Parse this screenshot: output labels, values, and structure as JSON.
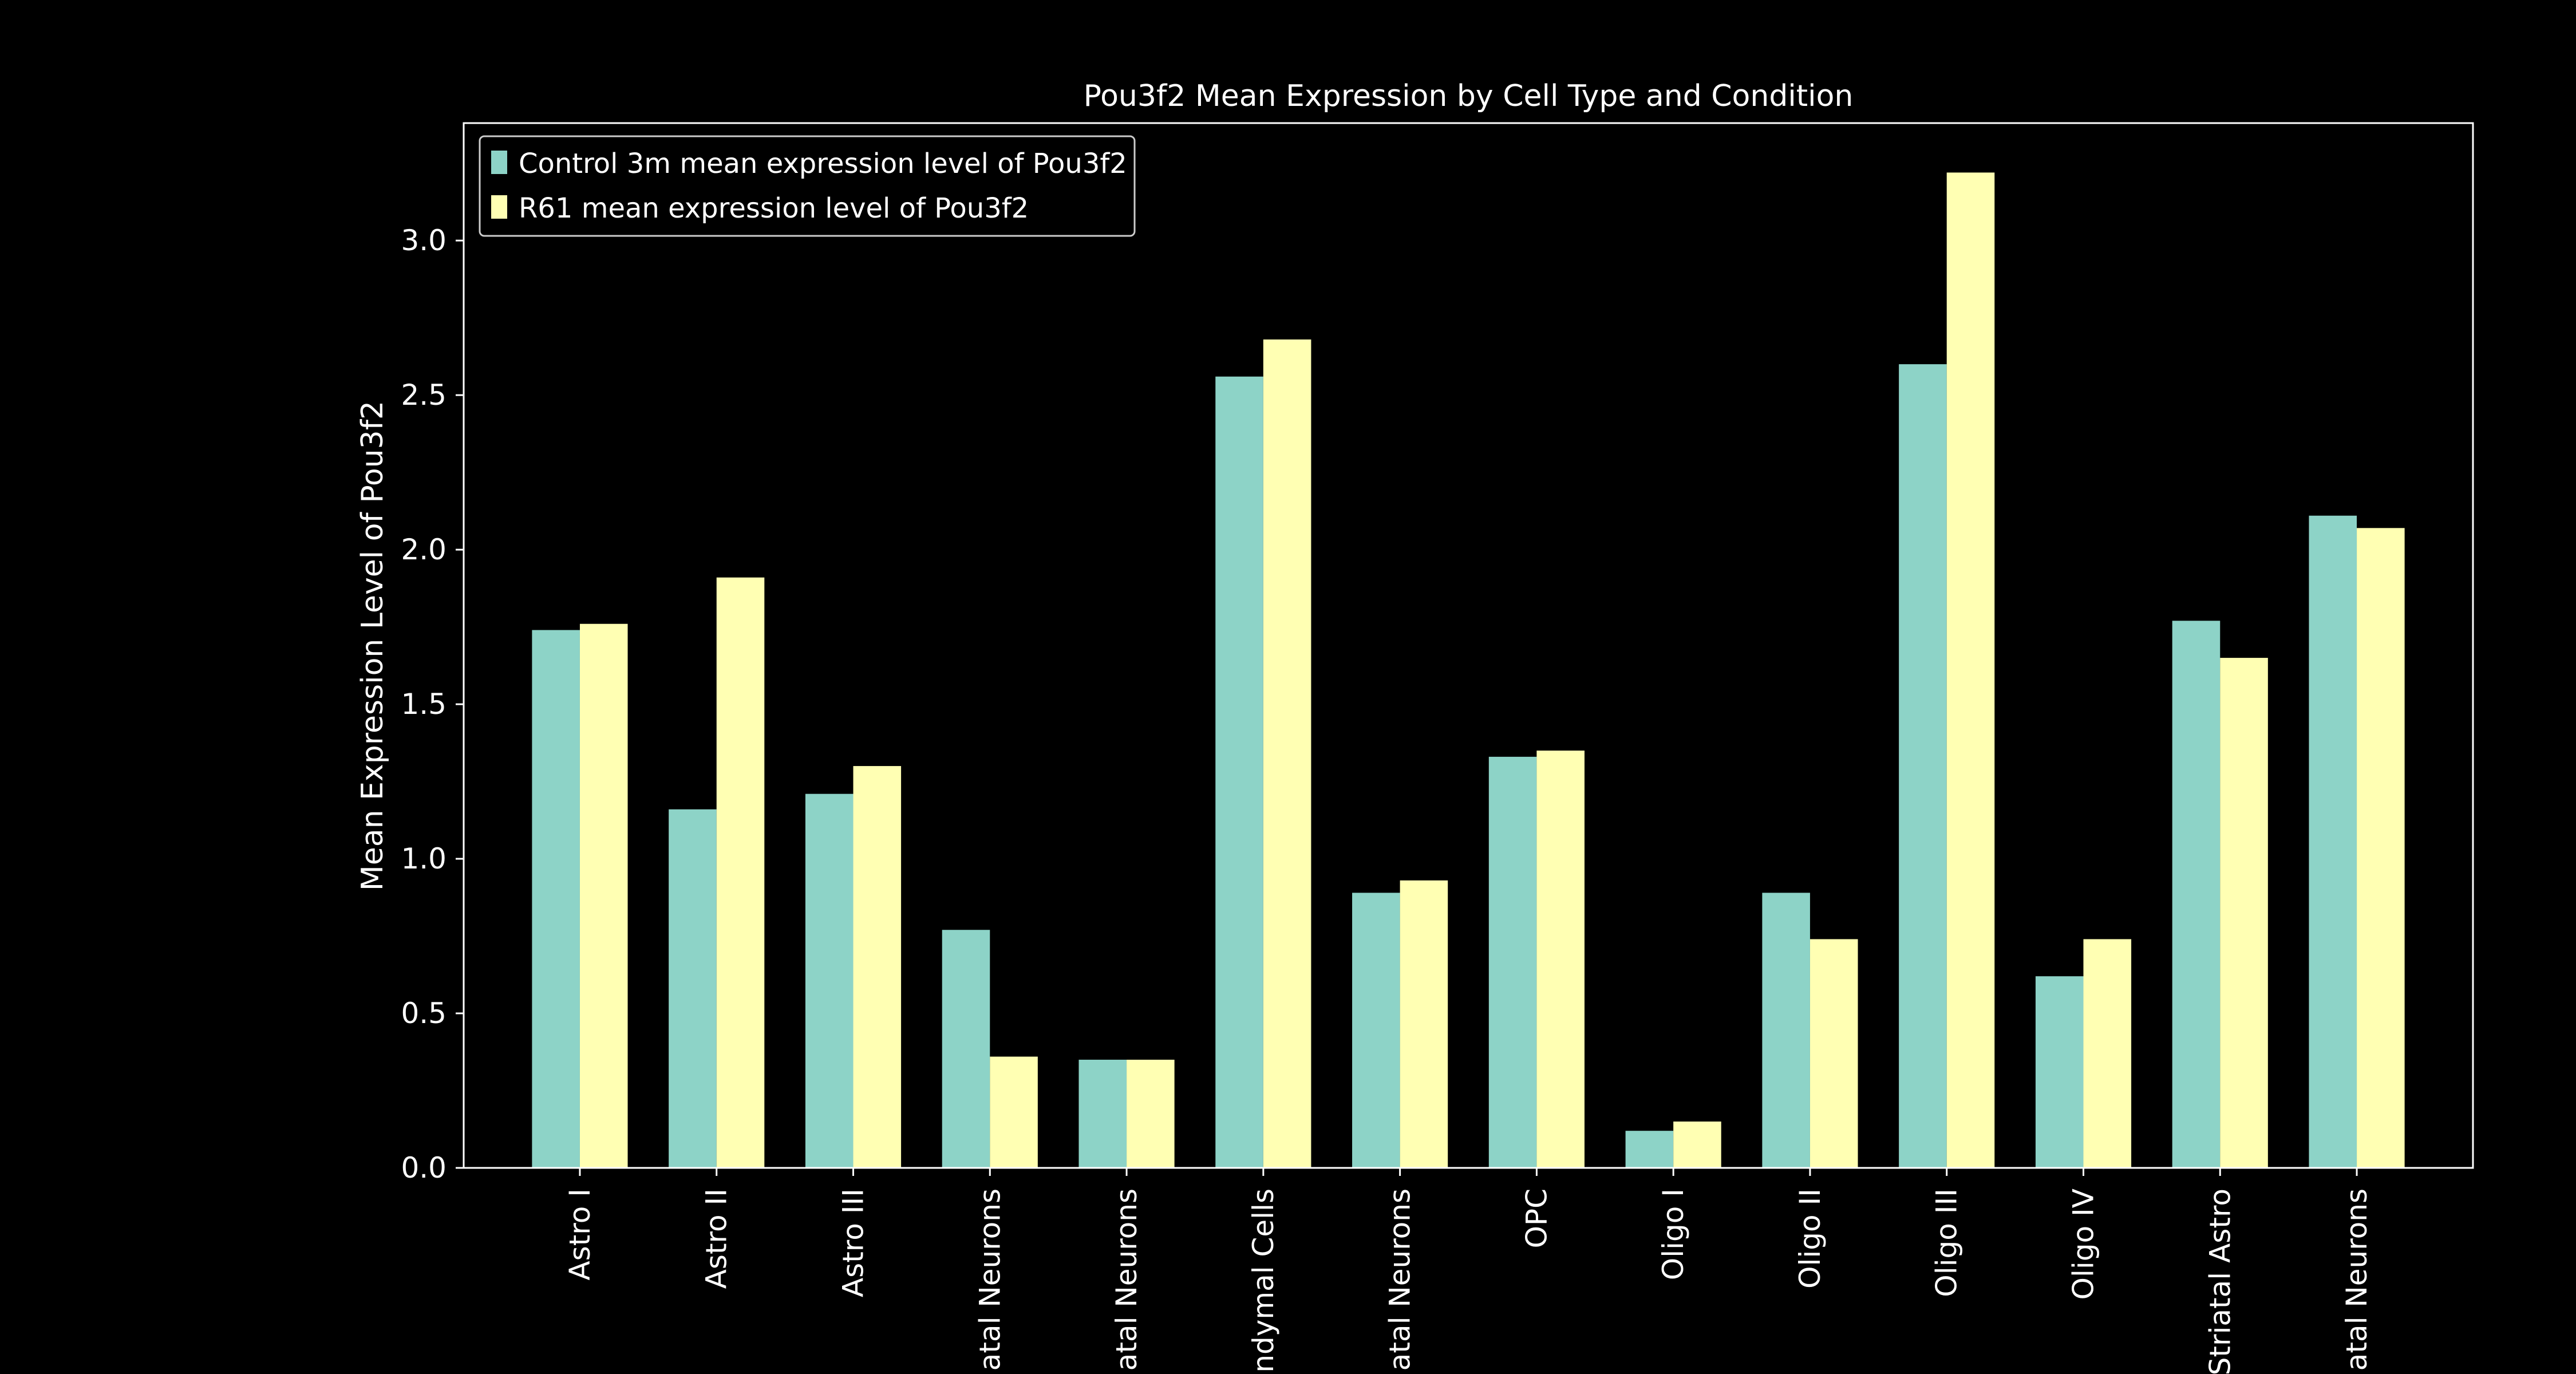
{
  "colors": {
    "background": "#000000",
    "foreground": "#ffffff",
    "control": "#8dd3c7",
    "r61": "#ffffb3"
  },
  "chart_data": {
    "type": "bar",
    "title": "Pou3f2 Mean Expression by Cell Type and Condition",
    "xlabel": "",
    "ylabel": "Mean Expression Level of Pou3f2",
    "ylim": [
      0,
      3.38
    ],
    "yticks": [
      0.0,
      0.5,
      1.0,
      1.5,
      2.0,
      2.5,
      3.0
    ],
    "ytick_labels": [
      "0.0",
      "0.5",
      "1.0",
      "1.5",
      "2.0",
      "2.5",
      "3.0"
    ],
    "grid": false,
    "legend_position": "top-left",
    "categories": [
      "Astro I",
      "Astro II",
      "Astro III",
      "atal Neurons",
      "atal Neurons",
      "ndymal Cells",
      "atal Neurons",
      "OPC",
      "Oligo I",
      "Oligo II",
      "Oligo III",
      "Oligo IV",
      "Striatal Astro",
      "atal Neurons"
    ],
    "series": [
      {
        "name": "Control 3m mean expression level of Pou3f2",
        "color": "#8dd3c7",
        "values": [
          1.74,
          1.16,
          1.21,
          0.77,
          0.35,
          2.56,
          0.89,
          1.33,
          0.12,
          0.89,
          2.6,
          0.62,
          1.77,
          2.11
        ]
      },
      {
        "name": "R61 mean expression level of Pou3f2",
        "color": "#ffffb3",
        "values": [
          1.76,
          1.91,
          1.3,
          0.36,
          0.35,
          2.68,
          0.93,
          1.35,
          0.15,
          0.74,
          3.22,
          0.74,
          1.65,
          2.07
        ]
      }
    ]
  }
}
